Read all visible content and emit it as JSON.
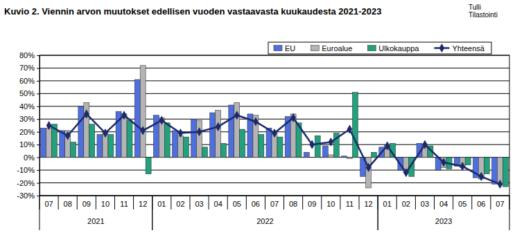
{
  "chart_data": {
    "type": "bar",
    "title": "Kuvio 2. Viennin arvon muutokset  edellisen vuoden vastaavasta  kuukaudesta 2021-2023",
    "annotations": [
      "Tulli",
      "Tilastointi"
    ],
    "categories": [
      "07",
      "08",
      "09",
      "10",
      "11",
      "12",
      "01",
      "02",
      "03",
      "04",
      "05",
      "06",
      "07",
      "08",
      "09",
      "10",
      "11",
      "12",
      "01",
      "02",
      "03",
      "04",
      "05",
      "06",
      "07"
    ],
    "category_groups": [
      {
        "label": "2021",
        "size": 6
      },
      {
        "label": "2022",
        "size": 12
      },
      {
        "label": "2023",
        "size": 7
      }
    ],
    "series": [
      {
        "name": "EU",
        "type": "bar",
        "color": "#4f6fdf",
        "values": [
          23,
          21,
          40,
          18,
          36,
          61,
          33,
          21,
          30,
          35,
          41,
          34,
          23,
          32,
          4,
          9,
          1,
          -15,
          8,
          -10,
          11,
          -10,
          -7,
          -16,
          -21
        ]
      },
      {
        "name": "Euroalue",
        "type": "bar",
        "color": "#b4b4b4",
        "values": [
          23,
          21,
          43,
          20,
          34,
          72,
          31,
          17,
          29,
          37,
          43,
          33,
          20,
          34,
          0,
          2,
          -1,
          -24,
          10,
          -12,
          10,
          -8,
          -8,
          -17,
          -21
        ]
      },
      {
        "name": "Ulkokauppa",
        "type": "bar",
        "color": "#23a07c",
        "values": [
          26,
          12,
          26,
          18,
          29,
          -13,
          27,
          16,
          8,
          11,
          22,
          18,
          16,
          27,
          17,
          19,
          51,
          4,
          11,
          -15,
          9,
          -9,
          -6,
          -13,
          -23
        ]
      },
      {
        "name": "Yhteensä",
        "type": "line",
        "color": "#1b2a6b",
        "marker": "diamond",
        "values": [
          25,
          17,
          34,
          19,
          33,
          21,
          29,
          19,
          20,
          24,
          33,
          28,
          19,
          31,
          10,
          12,
          22,
          -8,
          9,
          -12,
          10,
          -4,
          -7,
          -15,
          -21
        ]
      }
    ],
    "ylim": [
      -30,
      80
    ],
    "yticks": [
      {
        "value": -30,
        "label": "-30%"
      },
      {
        "value": -20,
        "label": "-20%"
      },
      {
        "value": -10,
        "label": "-10%"
      },
      {
        "value": 0,
        "label": "0%"
      },
      {
        "value": 10,
        "label": "10%"
      },
      {
        "value": 20,
        "label": "20%"
      },
      {
        "value": 30,
        "label": "30%"
      },
      {
        "value": 40,
        "label": "40%"
      },
      {
        "value": 50,
        "label": "50%"
      },
      {
        "value": 60,
        "label": "60%"
      },
      {
        "value": 70,
        "label": "70%"
      },
      {
        "value": 80,
        "label": "80%"
      }
    ],
    "grid": true,
    "legend": "top-right"
  }
}
